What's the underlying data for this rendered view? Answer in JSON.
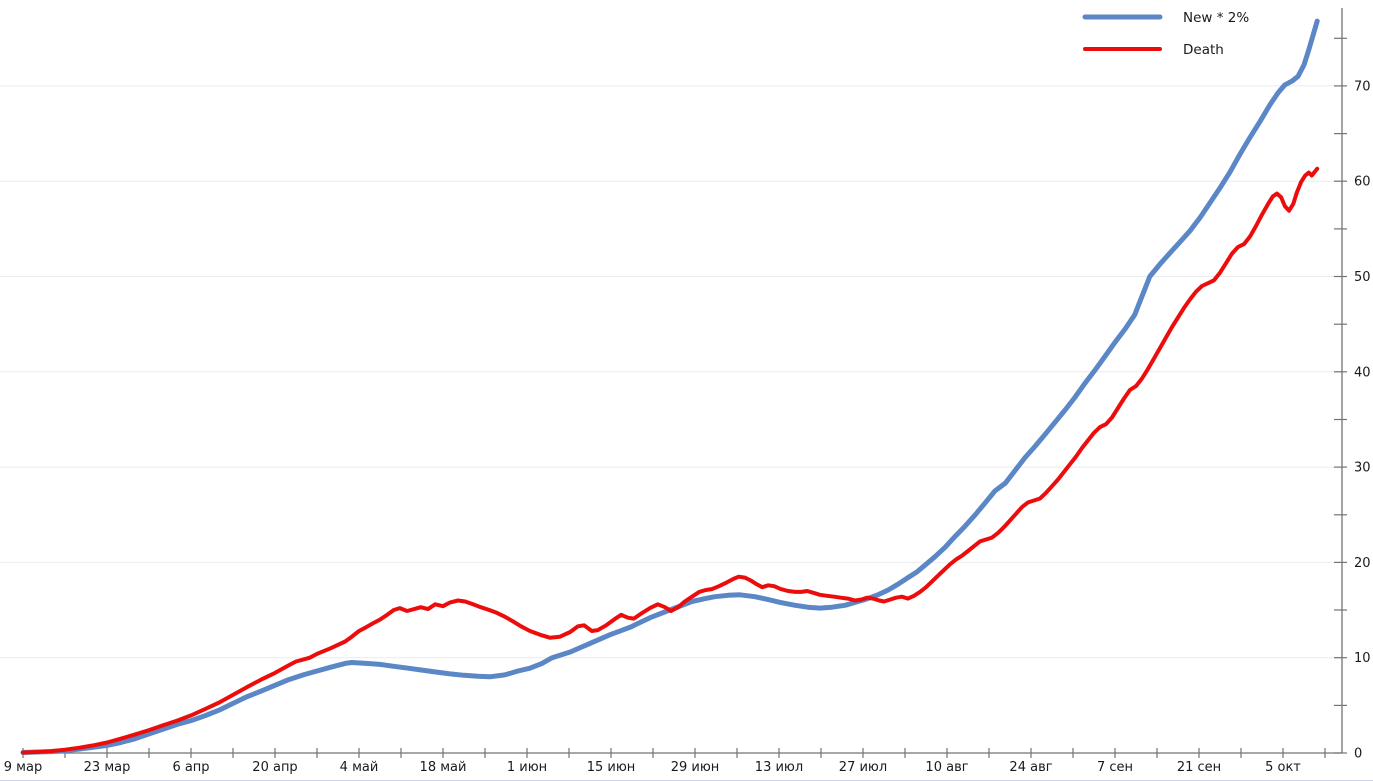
{
  "chart_data": {
    "type": "line",
    "title": "",
    "xlabel": "",
    "ylabel": "",
    "grid": "horizontal",
    "legend_position": "top-right",
    "x_axis": {
      "unit": "days since first tick (9 мар), weekly minor ticks, biweekly labels",
      "ticks": [
        {
          "label": "9 мар",
          "day": 0
        },
        {
          "label": "23 мар",
          "day": 14
        },
        {
          "label": "6 апр",
          "day": 28
        },
        {
          "label": "20 апр",
          "day": 42
        },
        {
          "label": "4 май",
          "day": 56
        },
        {
          "label": "18 май",
          "day": 70
        },
        {
          "label": "1 июн",
          "day": 84
        },
        {
          "label": "15 июн",
          "day": 98
        },
        {
          "label": "29 июн",
          "day": 112
        },
        {
          "label": "13 июл",
          "day": 126
        },
        {
          "label": "27 июл",
          "day": 140
        },
        {
          "label": "10 авг",
          "day": 154
        },
        {
          "label": "24 авг",
          "day": 168
        },
        {
          "label": "7 сен",
          "day": 182
        },
        {
          "label": "21 сен",
          "day": 196
        },
        {
          "label": "5 окт",
          "day": 210
        }
      ],
      "minor_tick_every_days": 7,
      "last_minor_tick_day": 217,
      "range_days": [
        0,
        220
      ]
    },
    "y_axis": {
      "side": "right",
      "major_ticks": [
        0,
        10,
        20,
        30,
        40,
        50,
        60,
        70
      ],
      "minor_tick_every": 5,
      "max_minor_tick": 75,
      "range": [
        0,
        78
      ]
    },
    "series": [
      {
        "name": "New * 2%",
        "color": "#5b87c7",
        "stroke_width": 5,
        "points": [
          [
            0,
            0.05
          ],
          [
            2.3,
            0.1
          ],
          [
            4.7,
            0.15
          ],
          [
            7,
            0.25
          ],
          [
            9.3,
            0.4
          ],
          [
            11.7,
            0.6
          ],
          [
            14,
            0.8
          ],
          [
            16.3,
            1.1
          ],
          [
            18.7,
            1.5
          ],
          [
            21,
            2.0
          ],
          [
            23.3,
            2.5
          ],
          [
            25.7,
            3.0
          ],
          [
            28,
            3.4
          ],
          [
            30.3,
            3.9
          ],
          [
            32.7,
            4.5
          ],
          [
            35,
            5.2
          ],
          [
            37.3,
            5.9
          ],
          [
            39.7,
            6.5
          ],
          [
            42,
            7.1
          ],
          [
            44.3,
            7.7
          ],
          [
            46.7,
            8.2
          ],
          [
            49,
            8.6
          ],
          [
            51.3,
            9.0
          ],
          [
            53.7,
            9.4
          ],
          [
            54.8,
            9.5
          ],
          [
            57.2,
            9.4
          ],
          [
            59.5,
            9.3
          ],
          [
            61.8,
            9.1
          ],
          [
            64.2,
            8.9
          ],
          [
            66.5,
            8.7
          ],
          [
            68.8,
            8.5
          ],
          [
            71.2,
            8.3
          ],
          [
            73.5,
            8.15
          ],
          [
            75.8,
            8.05
          ],
          [
            77.8,
            8.0
          ],
          [
            80.3,
            8.2
          ],
          [
            82.5,
            8.6
          ],
          [
            84.5,
            8.9
          ],
          [
            86.5,
            9.4
          ],
          [
            88.2,
            10.0
          ],
          [
            91.2,
            10.6
          ],
          [
            94.5,
            11.5
          ],
          [
            97.8,
            12.4
          ],
          [
            101.2,
            13.2
          ],
          [
            104.5,
            14.2
          ],
          [
            107.8,
            15.0
          ],
          [
            111.5,
            15.9
          ],
          [
            113.7,
            16.2
          ],
          [
            115.3,
            16.4
          ],
          [
            117.5,
            16.55
          ],
          [
            119.5,
            16.6
          ],
          [
            122,
            16.4
          ],
          [
            124.2,
            16.1
          ],
          [
            126.2,
            15.8
          ],
          [
            128.7,
            15.5
          ],
          [
            130.8,
            15.3
          ],
          [
            132.8,
            15.2
          ],
          [
            134.8,
            15.3
          ],
          [
            137,
            15.5
          ],
          [
            138.7,
            15.8
          ],
          [
            140.3,
            16.1
          ],
          [
            142.5,
            16.6
          ],
          [
            144.2,
            17.1
          ],
          [
            145.8,
            17.7
          ],
          [
            147.5,
            18.4
          ],
          [
            149,
            19.0
          ],
          [
            150.5,
            19.8
          ],
          [
            152,
            20.6
          ],
          [
            153.7,
            21.6
          ],
          [
            155.3,
            22.7
          ],
          [
            157,
            23.8
          ],
          [
            158.7,
            25.0
          ],
          [
            160.3,
            26.2
          ],
          [
            162,
            27.5
          ],
          [
            163.7,
            28.3
          ],
          [
            165.3,
            29.6
          ],
          [
            167,
            31.0
          ],
          [
            168.7,
            32.2
          ],
          [
            170.3,
            33.4
          ],
          [
            172,
            34.7
          ],
          [
            173.7,
            36.0
          ],
          [
            175.3,
            37.3
          ],
          [
            177,
            38.8
          ],
          [
            178.7,
            40.2
          ],
          [
            180.3,
            41.6
          ],
          [
            182,
            43.1
          ],
          [
            183.7,
            44.5
          ],
          [
            185.3,
            46.0
          ],
          [
            187.8,
            50.0
          ],
          [
            189.5,
            51.3
          ],
          [
            191.2,
            52.5
          ],
          [
            192.8,
            53.6
          ],
          [
            194.5,
            54.8
          ],
          [
            196.2,
            56.2
          ],
          [
            197.8,
            57.7
          ],
          [
            199.5,
            59.3
          ],
          [
            201.2,
            61.0
          ],
          [
            202.8,
            62.8
          ],
          [
            204.5,
            64.6
          ],
          [
            206.2,
            66.3
          ],
          [
            207.8,
            68.0
          ],
          [
            209.2,
            69.3
          ],
          [
            210.3,
            70.1
          ],
          [
            211.5,
            70.5
          ],
          [
            212.5,
            71.0
          ],
          [
            213.5,
            72.2
          ],
          [
            214.3,
            73.8
          ],
          [
            215,
            75.3
          ],
          [
            215.7,
            76.8
          ]
        ]
      },
      {
        "name": "Death",
        "color": "#ec0c0c",
        "stroke_width": 4,
        "points": [
          [
            0,
            0.05
          ],
          [
            2.3,
            0.1
          ],
          [
            4.7,
            0.2
          ],
          [
            7,
            0.35
          ],
          [
            9.3,
            0.55
          ],
          [
            11.7,
            0.8
          ],
          [
            14,
            1.1
          ],
          [
            16.3,
            1.5
          ],
          [
            18.7,
            1.95
          ],
          [
            21,
            2.4
          ],
          [
            23.3,
            2.9
          ],
          [
            25.7,
            3.4
          ],
          [
            28,
            3.95
          ],
          [
            30.3,
            4.6
          ],
          [
            32.7,
            5.3
          ],
          [
            35,
            6.1
          ],
          [
            37.3,
            6.9
          ],
          [
            39.7,
            7.7
          ],
          [
            42,
            8.4
          ],
          [
            44.3,
            9.2
          ],
          [
            45.5,
            9.6
          ],
          [
            46.7,
            9.8
          ],
          [
            47.8,
            10.0
          ],
          [
            49,
            10.4
          ],
          [
            51.3,
            11.0
          ],
          [
            53.7,
            11.7
          ],
          [
            54.8,
            12.2
          ],
          [
            56,
            12.8
          ],
          [
            57.2,
            13.2
          ],
          [
            58.3,
            13.6
          ],
          [
            59.5,
            14.0
          ],
          [
            60.7,
            14.5
          ],
          [
            61.8,
            15.0
          ],
          [
            62.8,
            15.2
          ],
          [
            64,
            14.9
          ],
          [
            65.2,
            15.1
          ],
          [
            66.3,
            15.3
          ],
          [
            67.5,
            15.1
          ],
          [
            68.7,
            15.6
          ],
          [
            70,
            15.4
          ],
          [
            71.2,
            15.8
          ],
          [
            72.5,
            16.0
          ],
          [
            73.7,
            15.9
          ],
          [
            75,
            15.6
          ],
          [
            76.3,
            15.3
          ],
          [
            77.7,
            15.0
          ],
          [
            79,
            14.7
          ],
          [
            80.3,
            14.3
          ],
          [
            81.7,
            13.8
          ],
          [
            83,
            13.3
          ],
          [
            84.5,
            12.8
          ],
          [
            86.2,
            12.4
          ],
          [
            87.8,
            12.1
          ],
          [
            89.5,
            12.2
          ],
          [
            91.2,
            12.7
          ],
          [
            92.5,
            13.3
          ],
          [
            93.5,
            13.4
          ],
          [
            94.8,
            12.8
          ],
          [
            95.8,
            12.9
          ],
          [
            97.2,
            13.4
          ],
          [
            98.5,
            14.0
          ],
          [
            99.7,
            14.5
          ],
          [
            100.8,
            14.2
          ],
          [
            101.8,
            14.1
          ],
          [
            103.2,
            14.7
          ],
          [
            104.5,
            15.2
          ],
          [
            105.8,
            15.6
          ],
          [
            107,
            15.3
          ],
          [
            108,
            14.9
          ],
          [
            109.2,
            15.3
          ],
          [
            110.3,
            15.9
          ],
          [
            111.5,
            16.4
          ],
          [
            112.7,
            16.9
          ],
          [
            113.8,
            17.1
          ],
          [
            114.8,
            17.2
          ],
          [
            116,
            17.5
          ],
          [
            117.3,
            17.9
          ],
          [
            118.5,
            18.3
          ],
          [
            119.3,
            18.5
          ],
          [
            120.3,
            18.4
          ],
          [
            121.3,
            18.1
          ],
          [
            122.3,
            17.7
          ],
          [
            123.2,
            17.4
          ],
          [
            124.2,
            17.6
          ],
          [
            125.2,
            17.5
          ],
          [
            126.3,
            17.2
          ],
          [
            127.5,
            17.0
          ],
          [
            128.7,
            16.9
          ],
          [
            129.7,
            16.9
          ],
          [
            130.7,
            17.0
          ],
          [
            131.8,
            16.8
          ],
          [
            132.8,
            16.6
          ],
          [
            134,
            16.5
          ],
          [
            135.2,
            16.4
          ],
          [
            136.3,
            16.3
          ],
          [
            137.5,
            16.2
          ],
          [
            138.7,
            16.0
          ],
          [
            139.7,
            16.1
          ],
          [
            140.7,
            16.3
          ],
          [
            141.7,
            16.2
          ],
          [
            142.7,
            16.0
          ],
          [
            143.5,
            15.9
          ],
          [
            144.5,
            16.1
          ],
          [
            145.5,
            16.3
          ],
          [
            146.5,
            16.4
          ],
          [
            147.5,
            16.2
          ],
          [
            148.5,
            16.5
          ],
          [
            149.5,
            16.9
          ],
          [
            150.5,
            17.4
          ],
          [
            151.5,
            18.0
          ],
          [
            152.5,
            18.6
          ],
          [
            153.5,
            19.2
          ],
          [
            154.5,
            19.8
          ],
          [
            155.5,
            20.3
          ],
          [
            156.5,
            20.7
          ],
          [
            157.5,
            21.2
          ],
          [
            158.5,
            21.7
          ],
          [
            159.5,
            22.2
          ],
          [
            160.5,
            22.4
          ],
          [
            161.5,
            22.6
          ],
          [
            162.5,
            23.1
          ],
          [
            163.5,
            23.7
          ],
          [
            164.5,
            24.4
          ],
          [
            165.5,
            25.1
          ],
          [
            166.5,
            25.8
          ],
          [
            167.5,
            26.3
          ],
          [
            168.5,
            26.5
          ],
          [
            169.5,
            26.7
          ],
          [
            170.5,
            27.3
          ],
          [
            171.5,
            28.0
          ],
          [
            172.5,
            28.7
          ],
          [
            173.5,
            29.5
          ],
          [
            174.5,
            30.3
          ],
          [
            175.5,
            31.1
          ],
          [
            176.5,
            32.0
          ],
          [
            177.5,
            32.8
          ],
          [
            178.5,
            33.6
          ],
          [
            179.5,
            34.2
          ],
          [
            180.5,
            34.5
          ],
          [
            181.5,
            35.2
          ],
          [
            182.5,
            36.2
          ],
          [
            183.5,
            37.2
          ],
          [
            184.5,
            38.1
          ],
          [
            185.5,
            38.5
          ],
          [
            186.5,
            39.3
          ],
          [
            187.5,
            40.3
          ],
          [
            188.5,
            41.4
          ],
          [
            189.5,
            42.5
          ],
          [
            190.5,
            43.6
          ],
          [
            191.5,
            44.7
          ],
          [
            192.5,
            45.7
          ],
          [
            193.5,
            46.7
          ],
          [
            194.5,
            47.6
          ],
          [
            195.5,
            48.4
          ],
          [
            196.5,
            49.0
          ],
          [
            197.5,
            49.3
          ],
          [
            198.5,
            49.6
          ],
          [
            199.5,
            50.4
          ],
          [
            200.5,
            51.4
          ],
          [
            201.5,
            52.4
          ],
          [
            202.5,
            53.1
          ],
          [
            203.5,
            53.4
          ],
          [
            204.5,
            54.2
          ],
          [
            205.5,
            55.3
          ],
          [
            206.5,
            56.5
          ],
          [
            207.5,
            57.6
          ],
          [
            208.3,
            58.4
          ],
          [
            209,
            58.7
          ],
          [
            209.7,
            58.3
          ],
          [
            210.3,
            57.4
          ],
          [
            211,
            56.9
          ],
          [
            211.7,
            57.6
          ],
          [
            212.3,
            58.8
          ],
          [
            213,
            59.9
          ],
          [
            213.7,
            60.6
          ],
          [
            214.3,
            60.9
          ],
          [
            214.8,
            60.6
          ],
          [
            215.7,
            61.3
          ]
        ]
      }
    ],
    "colors": {
      "background": "#ffffff",
      "gridline": "#ebebeb",
      "axis": "#737373",
      "tick_label": "#1a1a1a",
      "bottom_border": "#ccd4e6"
    }
  },
  "legend": {
    "items": [
      {
        "label": "New * 2%",
        "color": "#5b87c7"
      },
      {
        "label": "Death",
        "color": "#ec0c0c"
      }
    ]
  }
}
